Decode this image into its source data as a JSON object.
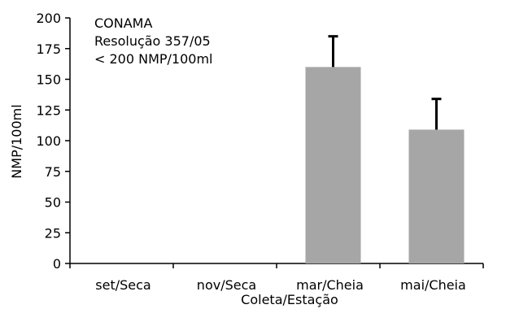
{
  "chart_data": {
    "type": "bar",
    "categories": [
      "set/Seca",
      "nov/Seca",
      "mar/Cheia",
      "mai/Cheia"
    ],
    "values": [
      0,
      0,
      160,
      109
    ],
    "error_plus": [
      0,
      0,
      25,
      25
    ],
    "xlabel": "Coleta/Estação",
    "ylabel": "NMP/100ml",
    "ylim": [
      0,
      200
    ],
    "yticks": [
      0,
      25,
      50,
      75,
      100,
      125,
      150,
      175,
      200
    ],
    "bar_color": "#a6a6a6",
    "error_color": "#000000",
    "grid": false,
    "annotation": [
      "CONAMA",
      "Resolução 357/05",
      "< 200 NMP/100ml"
    ]
  }
}
